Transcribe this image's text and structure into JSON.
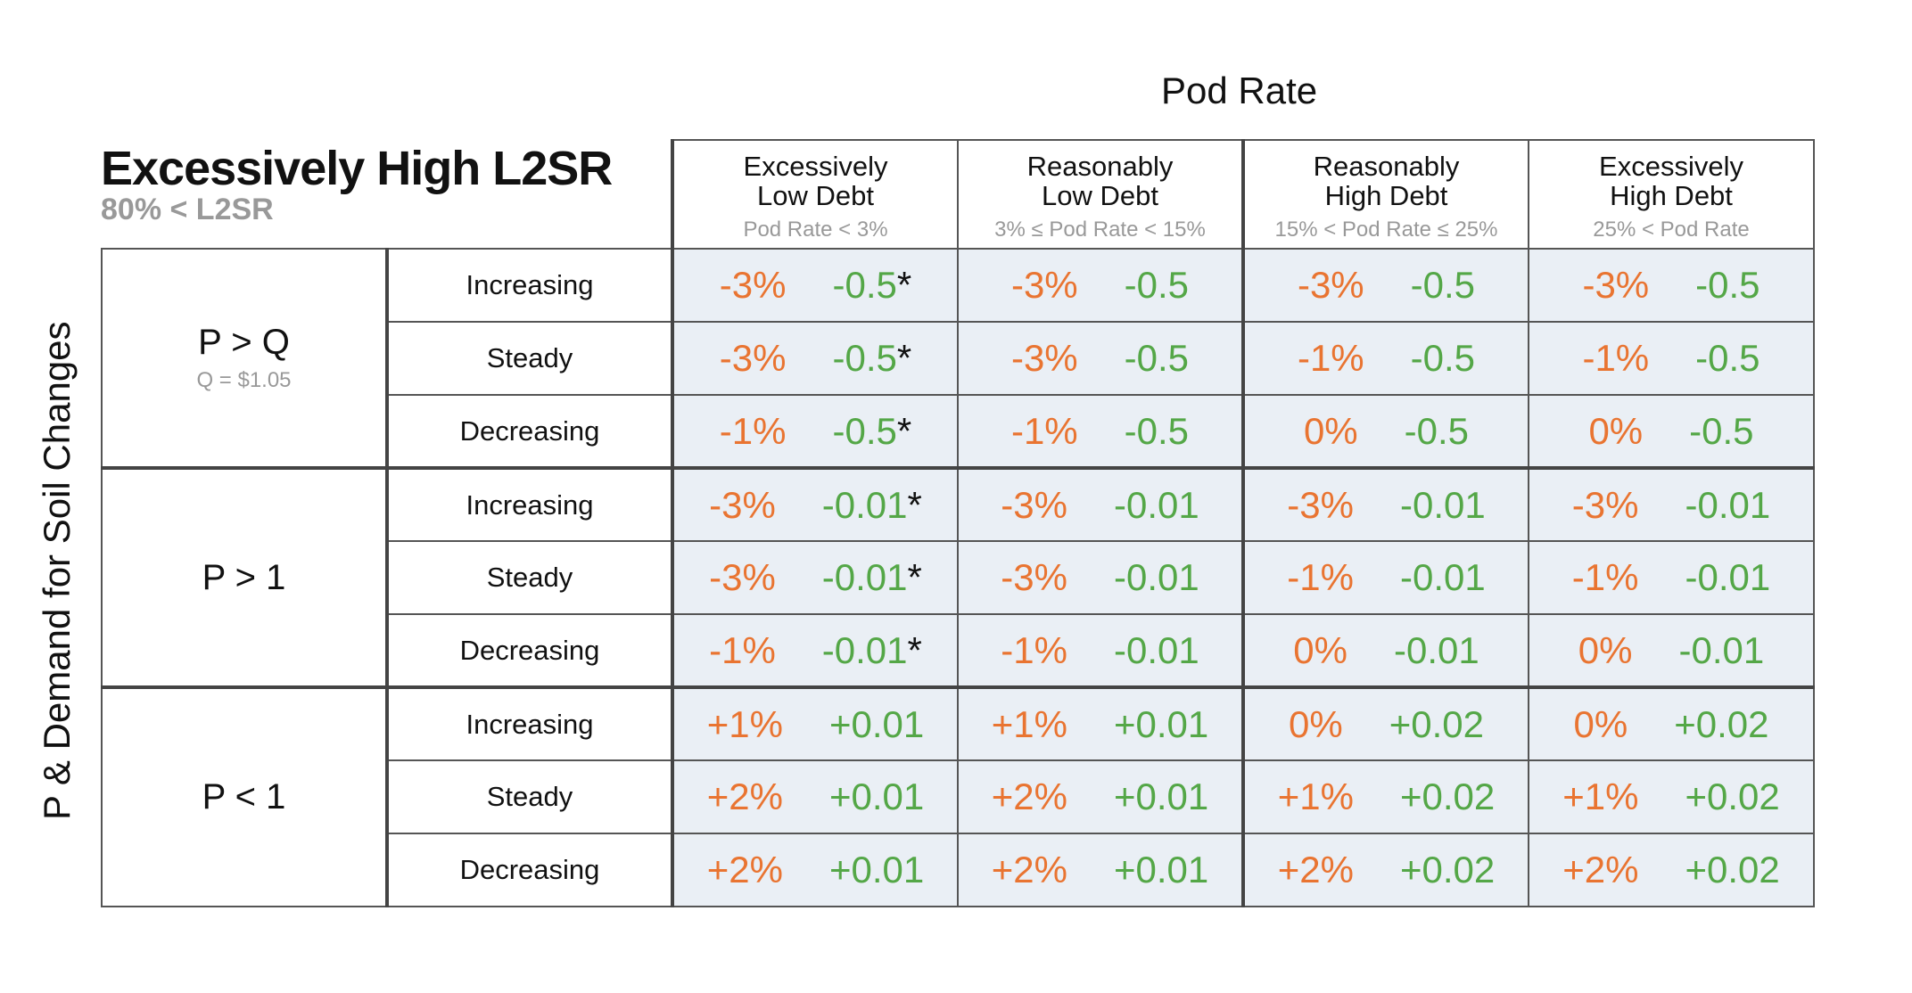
{
  "pod_rate_title": "Pod Rate",
  "title": "Excessively High L2SR",
  "subtitle": "80% < L2SR",
  "y_axis_label": "P & Demand for Soil Changes",
  "columns": [
    {
      "line1": "Excessively",
      "line2": "Low Debt",
      "range": "Pod Rate < 3%"
    },
    {
      "line1": "Reasonably",
      "line2": "Low Debt",
      "range": "3% ≤ Pod Rate < 15%"
    },
    {
      "line1": "Reasonably",
      "line2": "High Debt",
      "range": "15% < Pod Rate ≤ 25%"
    },
    {
      "line1": "Excessively",
      "line2": "High Debt",
      "range": "25% < Pod Rate"
    }
  ],
  "groups": [
    {
      "label": "P > Q",
      "note": "Q = $1.05",
      "rows": [
        {
          "trend": "Increasing",
          "cells": [
            [
              "-3%",
              "-0.5",
              "*"
            ],
            [
              "-3%",
              "-0.5",
              ""
            ],
            [
              "-3%",
              "-0.5",
              ""
            ],
            [
              "-3%",
              "-0.5",
              ""
            ]
          ]
        },
        {
          "trend": "Steady",
          "cells": [
            [
              "-3%",
              "-0.5",
              "*"
            ],
            [
              "-3%",
              "-0.5",
              ""
            ],
            [
              "-1%",
              "-0.5",
              ""
            ],
            [
              "-1%",
              "-0.5",
              ""
            ]
          ]
        },
        {
          "trend": "Decreasing",
          "cells": [
            [
              "-1%",
              "-0.5",
              "*"
            ],
            [
              "-1%",
              "-0.5",
              ""
            ],
            [
              "0%",
              "-0.5",
              ""
            ],
            [
              "0%",
              "-0.5",
              ""
            ]
          ]
        }
      ]
    },
    {
      "label": "P > 1",
      "note": "",
      "rows": [
        {
          "trend": "Increasing",
          "cells": [
            [
              "-3%",
              "-0.01",
              "*"
            ],
            [
              "-3%",
              "-0.01",
              ""
            ],
            [
              "-3%",
              "-0.01",
              ""
            ],
            [
              "-3%",
              "-0.01",
              ""
            ]
          ]
        },
        {
          "trend": "Steady",
          "cells": [
            [
              "-3%",
              "-0.01",
              "*"
            ],
            [
              "-3%",
              "-0.01",
              ""
            ],
            [
              "-1%",
              "-0.01",
              ""
            ],
            [
              "-1%",
              "-0.01",
              ""
            ]
          ]
        },
        {
          "trend": "Decreasing",
          "cells": [
            [
              "-1%",
              "-0.01",
              "*"
            ],
            [
              "-1%",
              "-0.01",
              ""
            ],
            [
              "0%",
              "-0.01",
              ""
            ],
            [
              "0%",
              "-0.01",
              ""
            ]
          ]
        }
      ]
    },
    {
      "label": "P < 1",
      "note": "",
      "rows": [
        {
          "trend": "Increasing",
          "cells": [
            [
              "+1%",
              "+0.01",
              ""
            ],
            [
              "+1%",
              "+0.01",
              ""
            ],
            [
              "0%",
              "+0.02",
              ""
            ],
            [
              "0%",
              "+0.02",
              ""
            ]
          ]
        },
        {
          "trend": "Steady",
          "cells": [
            [
              "+2%",
              "+0.01",
              ""
            ],
            [
              "+2%",
              "+0.01",
              ""
            ],
            [
              "+1%",
              "+0.02",
              ""
            ],
            [
              "+1%",
              "+0.02",
              ""
            ]
          ]
        },
        {
          "trend": "Decreasing",
          "cells": [
            [
              "+2%",
              "+0.01",
              ""
            ],
            [
              "+2%",
              "+0.01",
              ""
            ],
            [
              "+2%",
              "+0.02",
              ""
            ],
            [
              "+2%",
              "+0.02",
              ""
            ]
          ]
        }
      ]
    }
  ],
  "colors": {
    "percent": "#e97431",
    "value": "#54a747",
    "cell_bg": "#eaeff5"
  }
}
